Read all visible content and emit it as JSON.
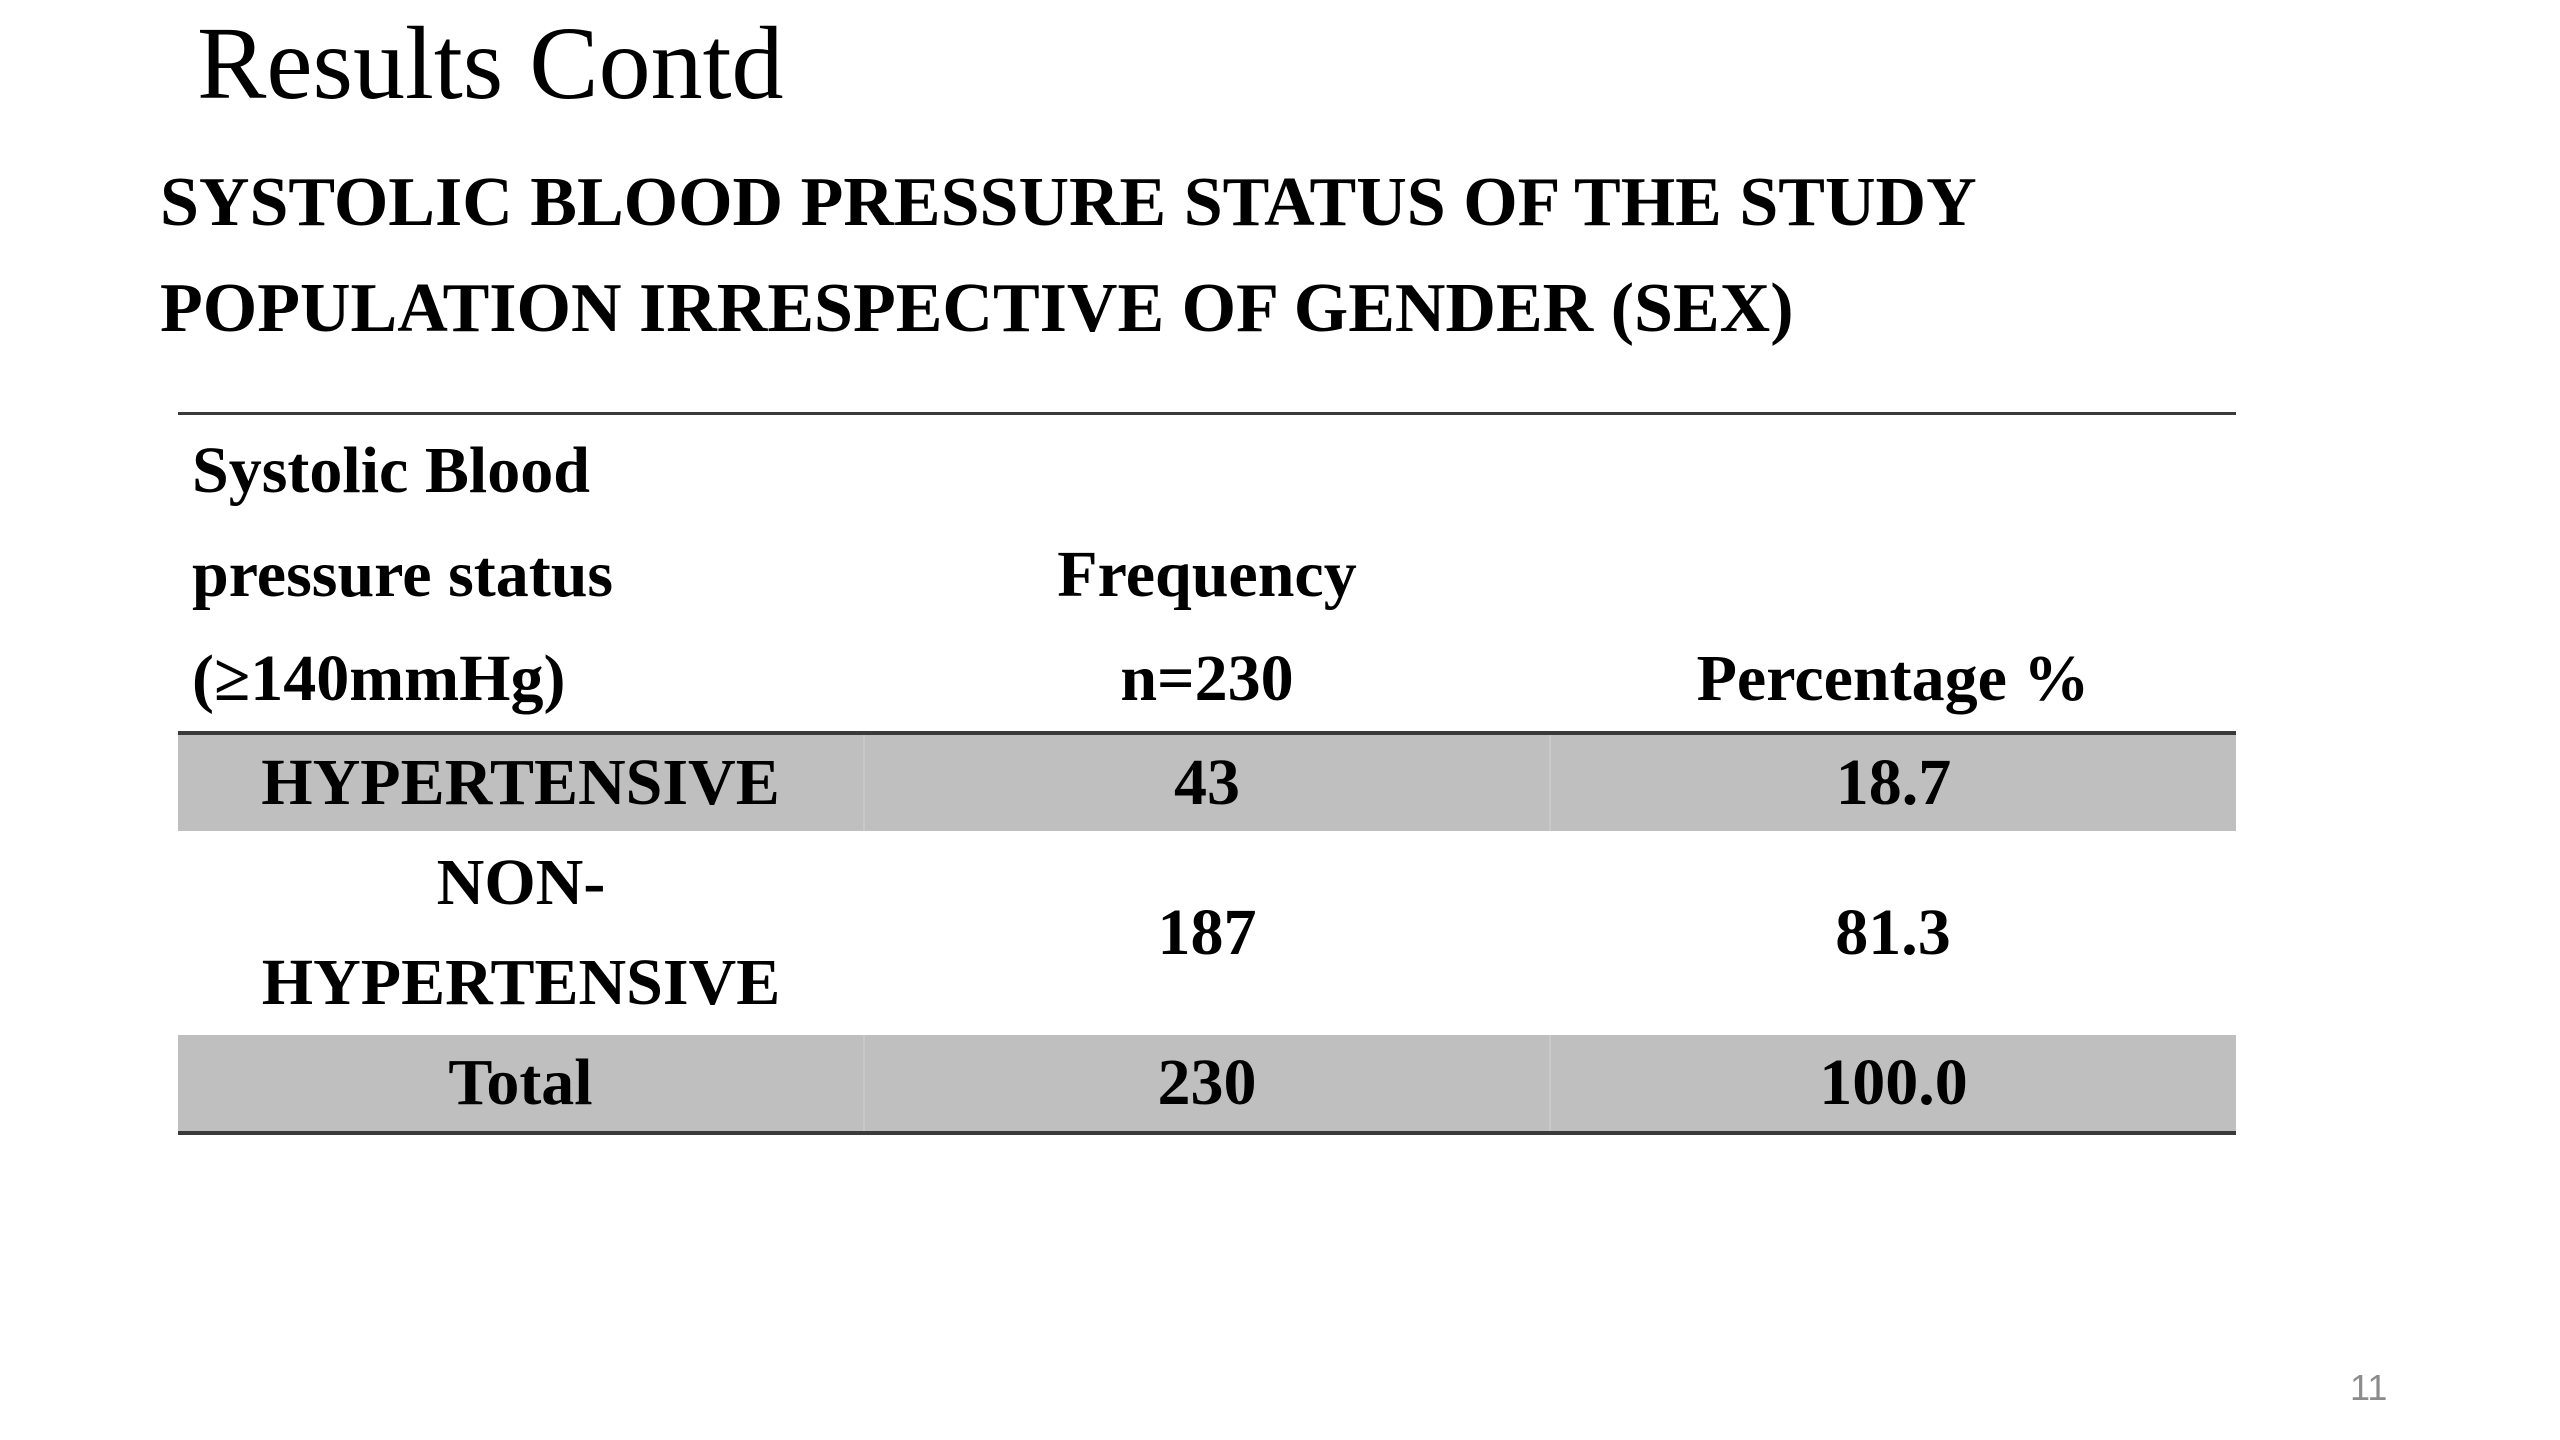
{
  "slide": {
    "title": "Results Contd",
    "subtitle": {
      "line1": "SYSTOLIC BLOOD PRESSURE STATUS OF THE STUDY",
      "line2": "POPULATION IRRESPECTIVE OF GENDER (SEX)"
    },
    "page_number": "11"
  },
  "table": {
    "headers": {
      "status": [
        "Systolic Blood",
        "pressure status",
        "(≥140mmHg)"
      ],
      "frequency": [
        "Frequency",
        "n=230"
      ],
      "percentage": "Percentage %"
    },
    "rows": [
      {
        "status": [
          "HYPERTENSIVE"
        ],
        "frequency": "43",
        "percentage": "18.7"
      },
      {
        "status": [
          "NON-",
          "HYPERTENSIVE"
        ],
        "frequency": "187",
        "percentage": "81.3"
      },
      {
        "status": [
          "Total"
        ],
        "frequency": "230",
        "percentage": "100.0"
      }
    ]
  },
  "colors": {
    "shaded_row": "#bfbfbf",
    "rule": "#3a3a3a",
    "page_number": "#8c8c8c"
  }
}
